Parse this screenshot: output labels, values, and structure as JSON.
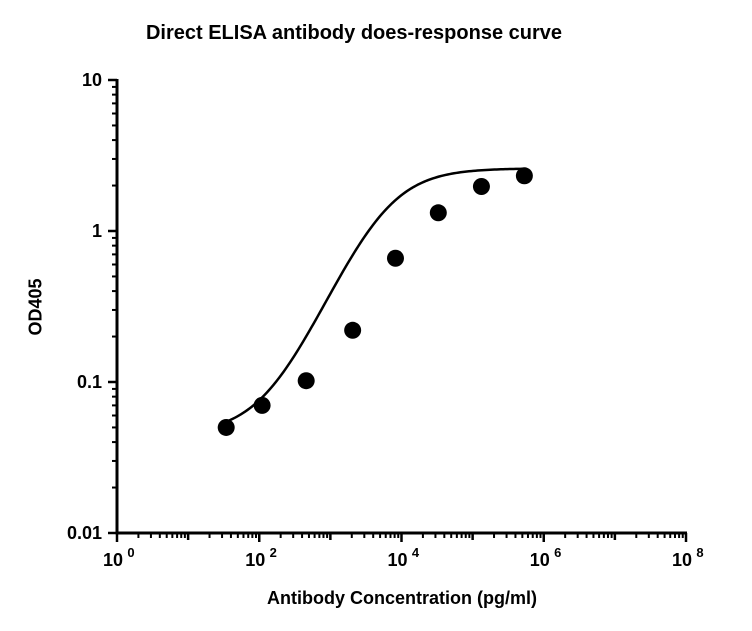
{
  "chart_data": {
    "type": "scatter",
    "title": "Direct ELISA antibody does-response curve",
    "xlabel": "Antibody Concentration (pg/ml)",
    "ylabel": "OD405",
    "x_scale": "log",
    "y_scale": "log",
    "xlim": [
      1,
      100000000
    ],
    "ylim": [
      0.01,
      10
    ],
    "x_ticks": [
      {
        "value": 1,
        "base": "10",
        "exp": "0"
      },
      {
        "value": 100,
        "base": "10",
        "exp": "2"
      },
      {
        "value": 10000,
        "base": "10",
        "exp": "4"
      },
      {
        "value": 1000000,
        "base": "10",
        "exp": "6"
      },
      {
        "value": 100000000,
        "base": "10",
        "exp": "8"
      }
    ],
    "y_ticks": [
      {
        "value": 10,
        "label": "10"
      },
      {
        "value": 1,
        "label": "1"
      },
      {
        "value": 0.1,
        "label": "0.1"
      },
      {
        "value": 0.01,
        "label": "0.01"
      }
    ],
    "grid": false,
    "points": {
      "x": [
        34.3,
        109.7,
        457,
        2057,
        8229,
        32915,
        133000,
        534000
      ],
      "y": [
        0.05,
        0.07,
        0.102,
        0.22,
        0.66,
        1.32,
        1.97,
        2.32
      ]
    },
    "fit_curve": {
      "model": "4PL",
      "bottom": 0.045,
      "top": 2.6,
      "ec50": 5500,
      "hill": 1.1
    },
    "colors": {
      "marker": "#000000",
      "curve": "#000000",
      "axis": "#000000"
    }
  }
}
